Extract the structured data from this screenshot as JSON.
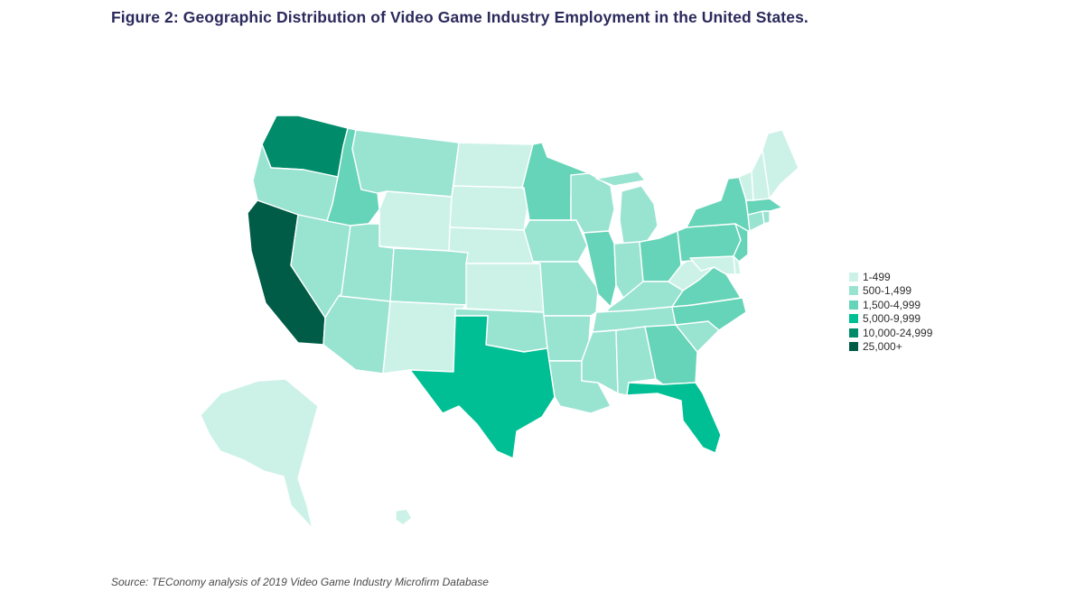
{
  "title": "Figure 2: Geographic Distribution of Video Game Industry Employment in the United States.",
  "source": "Source: TEConomy analysis of 2019 Video Game Industry Microfirm Database",
  "legend": [
    {
      "label": "1-499",
      "color": "#ccf2e8",
      "class": 1
    },
    {
      "label": "500-1,499",
      "color": "#99e3d1",
      "class": 2
    },
    {
      "label": "1,500-4,999",
      "color": "#66d4b8",
      "class": 3
    },
    {
      "label": "5,000-9,999",
      "color": "#00bf94",
      "class": 4
    },
    {
      "label": "10,000-24,999",
      "color": "#008c6a",
      "class": 5
    },
    {
      "label": "25,000+",
      "color": "#005c46",
      "class": 6
    }
  ],
  "states": [
    {
      "name": "Washington",
      "class": 5
    },
    {
      "name": "Oregon",
      "class": 2
    },
    {
      "name": "California",
      "class": 6
    },
    {
      "name": "Nevada",
      "class": 2
    },
    {
      "name": "Idaho",
      "class": 3
    },
    {
      "name": "Montana",
      "class": 2
    },
    {
      "name": "Wyoming",
      "class": 1
    },
    {
      "name": "Utah",
      "class": 2
    },
    {
      "name": "Arizona",
      "class": 2
    },
    {
      "name": "Colorado",
      "class": 2
    },
    {
      "name": "New Mexico",
      "class": 1
    },
    {
      "name": "North Dakota",
      "class": 1
    },
    {
      "name": "South Dakota",
      "class": 1
    },
    {
      "name": "Nebraska",
      "class": 1
    },
    {
      "name": "Kansas",
      "class": 1
    },
    {
      "name": "Oklahoma",
      "class": 2
    },
    {
      "name": "Texas",
      "class": 4
    },
    {
      "name": "Minnesota",
      "class": 3
    },
    {
      "name": "Iowa",
      "class": 2
    },
    {
      "name": "Missouri",
      "class": 2
    },
    {
      "name": "Arkansas",
      "class": 2
    },
    {
      "name": "Louisiana",
      "class": 2
    },
    {
      "name": "Wisconsin",
      "class": 2
    },
    {
      "name": "Illinois",
      "class": 3
    },
    {
      "name": "Michigan",
      "class": 2
    },
    {
      "name": "Indiana",
      "class": 2
    },
    {
      "name": "Ohio",
      "class": 3
    },
    {
      "name": "Kentucky",
      "class": 2
    },
    {
      "name": "Tennessee",
      "class": 2
    },
    {
      "name": "Mississippi",
      "class": 2
    },
    {
      "name": "Alabama",
      "class": 2
    },
    {
      "name": "Georgia",
      "class": 3
    },
    {
      "name": "Florida",
      "class": 4
    },
    {
      "name": "South Carolina",
      "class": 2
    },
    {
      "name": "North Carolina",
      "class": 3
    },
    {
      "name": "Virginia",
      "class": 3
    },
    {
      "name": "West Virginia",
      "class": 1
    },
    {
      "name": "Pennsylvania",
      "class": 3
    },
    {
      "name": "New York",
      "class": 3
    },
    {
      "name": "New Jersey",
      "class": 3
    },
    {
      "name": "Maryland",
      "class": 1
    },
    {
      "name": "Delaware",
      "class": 1
    },
    {
      "name": "Connecticut",
      "class": 2
    },
    {
      "name": "Rhode Island",
      "class": 2
    },
    {
      "name": "Massachusetts",
      "class": 3
    },
    {
      "name": "Vermont",
      "class": 1
    },
    {
      "name": "New Hampshire",
      "class": 1
    },
    {
      "name": "Maine",
      "class": 1
    },
    {
      "name": "Alaska",
      "class": 1
    },
    {
      "name": "Hawaii",
      "class": 1
    }
  ]
}
